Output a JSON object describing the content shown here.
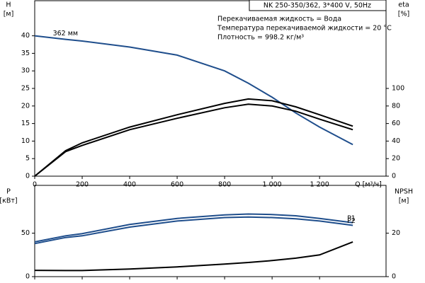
{
  "chart_data": [
    {
      "type": "line",
      "title": "NK 250-350/362, 3*400 V, 50Hz",
      "annotations": [
        "Перекачиваемая жидкость = Вода",
        "Температура перекачиваемой жидкости = 20 °C",
        "Плотность = 998.2 кг/м³"
      ],
      "ylabel": "H",
      "yunit": "[м]",
      "y2label": "eta",
      "y2unit": "[%]",
      "xlabel": "Q [м³/ч]",
      "xlim": [
        0,
        1480
      ],
      "xticks": [
        0,
        200,
        400,
        600,
        800,
        {
          "value": 1000,
          "label": "1 000"
        },
        {
          "value": 1200,
          "label": "1 200"
        }
      ],
      "ylim": [
        0,
        50
      ],
      "yticks": [
        0,
        5,
        10,
        15,
        20,
        25,
        30,
        35,
        40
      ],
      "y2lim": [
        0,
        200
      ],
      "y2ticks": [
        0,
        20,
        40,
        60,
        80,
        100
      ],
      "x": [
        0,
        130,
        200,
        400,
        600,
        800,
        900,
        1000,
        1100,
        1200,
        1340
      ],
      "series": [
        {
          "label": "362 мм",
          "color": "#1f4e8c",
          "values": [
            40,
            39,
            38.5,
            36.8,
            34.5,
            30,
            26.5,
            22.5,
            18,
            14,
            9
          ]
        },
        {
          "color": "#000000",
          "axis": "y2",
          "values": [
            0,
            29,
            38,
            56,
            70,
            83,
            88,
            86,
            79,
            70,
            57
          ]
        },
        {
          "color": "#000000",
          "axis": "y2",
          "values": [
            0,
            28,
            35,
            53,
            66,
            78,
            82,
            80,
            74,
            65,
            53
          ]
        }
      ]
    },
    {
      "type": "line",
      "ylabel": "P",
      "yunit": "[кВт]",
      "y2label": "NPSH",
      "y2unit": "[м]",
      "xlim": [
        0,
        1480
      ],
      "ylim": [
        0,
        105
      ],
      "yticks": [
        0,
        50
      ],
      "y2lim": [
        0,
        42
      ],
      "y2ticks": [
        0,
        20
      ],
      "x": [
        0,
        130,
        200,
        400,
        600,
        800,
        900,
        1000,
        1100,
        1200,
        1340
      ],
      "series": [
        {
          "name": "P1",
          "color": "#1f4e8c",
          "values": [
            40,
            47,
            49.5,
            60,
            67,
            71,
            72,
            71.5,
            70,
            67,
            62
          ]
        },
        {
          "name": "P2",
          "color": "#1f4e8c",
          "values": [
            38,
            45,
            47,
            57,
            64,
            68,
            68.5,
            68,
            66.5,
            64,
            59
          ]
        },
        {
          "color": "#000000",
          "axis": "y2",
          "values": [
            2.9,
            2.8,
            2.8,
            3.5,
            4.5,
            5.8,
            6.5,
            7.4,
            8.5,
            10,
            16
          ]
        }
      ]
    }
  ]
}
